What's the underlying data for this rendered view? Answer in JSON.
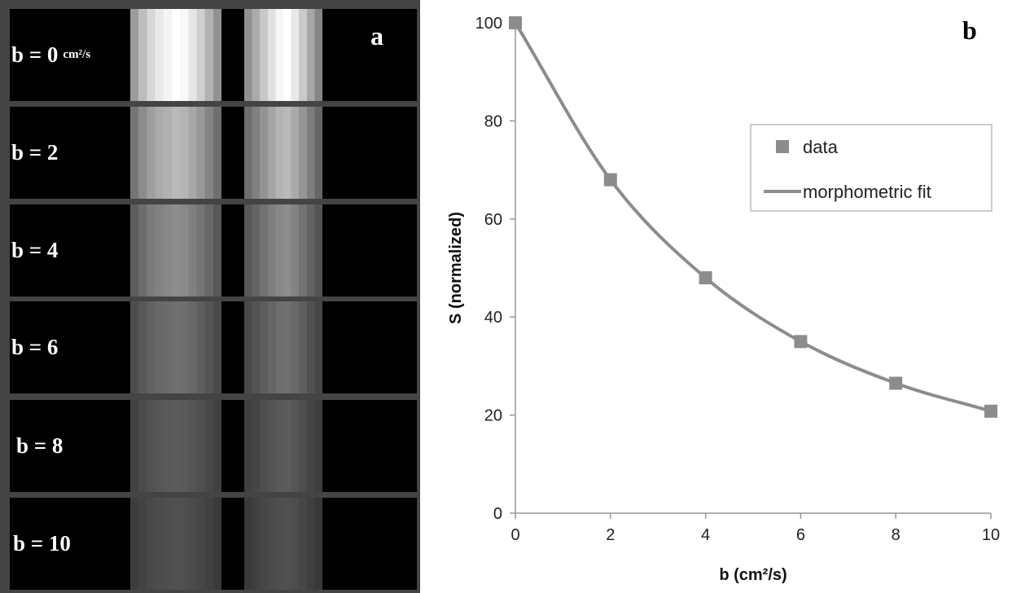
{
  "panel_a": {
    "letter": "a",
    "rows": [
      {
        "label": "b = 0",
        "unit": "cm²/s",
        "intensity": 1.0
      },
      {
        "label": "b = 2",
        "unit": "",
        "intensity": 0.68
      },
      {
        "label": "b = 4",
        "unit": "",
        "intensity": 0.48
      },
      {
        "label": "b = 6",
        "unit": "",
        "intensity": 0.35
      },
      {
        "label": "b = 8",
        "unit": "",
        "intensity": 0.26
      },
      {
        "label": "b = 10",
        "unit": "",
        "intensity": 0.21
      }
    ]
  },
  "panel_b": {
    "letter": "b"
  },
  "chart_data": {
    "type": "scatter",
    "xlabel": "b (cm²/s)",
    "ylabel": "S (normalized)",
    "xlim": [
      0,
      10
    ],
    "ylim": [
      0,
      100
    ],
    "xticks": [
      0,
      2,
      4,
      6,
      8,
      10
    ],
    "yticks": [
      0,
      20,
      40,
      60,
      80,
      100
    ],
    "grid": false,
    "legend_position": "top-right",
    "series": [
      {
        "name": "data",
        "kind": "marker",
        "color": "#8c8c8c",
        "x": [
          0,
          2,
          4,
          6,
          8,
          10
        ],
        "y": [
          100,
          68,
          48,
          35,
          26.5,
          20.8
        ]
      },
      {
        "name": "morphometric fit",
        "kind": "line",
        "color": "#8c8c8c",
        "x": [
          0,
          2,
          4,
          6,
          8,
          10
        ],
        "y": [
          100,
          68,
          48,
          35,
          26.5,
          20.8
        ]
      }
    ]
  }
}
